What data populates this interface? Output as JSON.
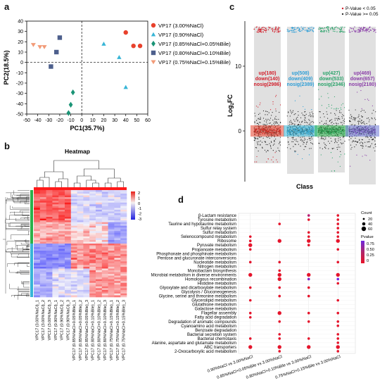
{
  "panel_labels": {
    "a": "a",
    "b": "b",
    "c": "c",
    "d": "d"
  },
  "chart_data": [
    {
      "id": "a",
      "type": "scatter",
      "xlabel": "PC1(35.7%)",
      "ylabel": "PC2(18.5%)",
      "xlim": [
        -50,
        60
      ],
      "ylim": [
        -50,
        40
      ],
      "xticks": [
        "-50",
        "-40",
        "-30",
        "-20",
        "-10",
        "0",
        "10",
        "20",
        "30",
        "40",
        "50",
        "60"
      ],
      "yticks": [
        "40",
        "30",
        "20",
        "10",
        "0",
        "-10",
        "-20",
        "-30",
        "-40",
        "-50"
      ],
      "series": [
        {
          "name": "VP17 (3.00%NaCl)",
          "color": "#e8412c",
          "marker": "circle",
          "points": [
            [
              40,
              29
            ],
            [
              47,
              16
            ],
            [
              53,
              16
            ]
          ]
        },
        {
          "name": "VP17 (0.90%NaCl)",
          "color": "#37b5d6",
          "marker": "triangle",
          "points": [
            [
              20,
              18
            ],
            [
              34,
              5
            ],
            [
              40,
              -24
            ]
          ]
        },
        {
          "name": "VP17 (0.85%NaCl+0.05%Bile)",
          "color": "#1a9476",
          "marker": "diamond",
          "points": [
            [
              -8,
              -29
            ],
            [
              -10,
              -41
            ],
            [
              -12,
              -49
            ]
          ]
        },
        {
          "name": "VP17 (0.80%NaCl+0.10%Bile)",
          "color": "#4d5f8c",
          "marker": "square",
          "points": [
            [
              -20,
              24
            ],
            [
              -23,
              10
            ],
            [
              -28,
              -4
            ]
          ]
        },
        {
          "name": "VP17 (0.75%NaCl+0.15%Bile)",
          "color": "#f29b78",
          "marker": "triangle-down",
          "points": [
            [
              -44,
              17
            ],
            [
              -38,
              15
            ],
            [
              -34,
              15
            ]
          ]
        }
      ]
    },
    {
      "id": "b",
      "type": "heatmap",
      "title": "Heatmap",
      "color_scale": {
        "ticks": [
          "2",
          "1",
          "0",
          "-1",
          "-2",
          "-3"
        ]
      },
      "columns": [
        "VPC17 (3.00%NaCl)_1",
        "VPC17 (3.00%NaCl)_2",
        "VPC17 (3.00%NaCl)_3",
        "VPC17 (0.90%NaCl)_1",
        "VPC17 (0.90%NaCl)_2",
        "VPC17 (0.90%NaCl)_3",
        "VPC17 (0.85%NaCl+0.05%Bile)_1",
        "VPC17 (0.85%NaCl+0.05%Bile)_2",
        "VPC17 (0.85%NaCl+0.05%Bile)_3",
        "VPC17 (0.80%NaCl+0.10%Bile)_1",
        "VPC17 (0.80%NaCl+0.10%Bile)_2",
        "VPC17 (0.80%NaCl+0.10%Bile)_3",
        "VPC17 (0.75%NaCl+0.15%Bile)_1",
        "VPC17 (0.75%NaCl+0.15%Bile)_2",
        "VPC17 (0.75%NaCl+0.15%Bile)_3"
      ]
    },
    {
      "id": "c",
      "type": "scatter",
      "xlabel": "Class",
      "ylabel": "Log2FC",
      "ylabel_main": "Log",
      "ylabel_sub": "2",
      "ylabel_tail": "FC",
      "yticks": [
        "10",
        "0"
      ],
      "legend": [
        "P-Value < 0.05",
        "P-Value >= 0.05"
      ],
      "groups": [
        {
          "up": "up(180)",
          "down": "down(140)",
          "nosig": "nosig(2986)",
          "color": "#d21f2b",
          "band": "#e8412c"
        },
        {
          "up": "up(508)",
          "down": "down(409)",
          "nosig": "nosig(2389)",
          "color": "#2e9ed6",
          "band": "#37b5d6"
        },
        {
          "up": "up(427)",
          "down": "down(533)",
          "nosig": "nosig(2346)",
          "color": "#2aa36a",
          "band": "#2bb14a"
        },
        {
          "up": "up(469)",
          "down": "down(657)",
          "nosig": "nosig(2180)",
          "color": "#8a3ea8",
          "band": "#6c79d6"
        }
      ]
    },
    {
      "id": "d",
      "type": "scatter",
      "x_categories": [
        "0.90%NaCl vs 3.00%NaCl",
        "0.85%NaCl+0.05%Bile vs 3.00%NaCl",
        "0.80%NaCl+0.10%Bile vs 3.00%NaCl",
        "0.75%NaCl+0.15%Bile vs 3.00%NaCl"
      ],
      "y_categories": [
        "β-Lactam resistance",
        "Tyrosine metabolism",
        "Taurine and hypotaurine metabolism",
        "Sulfur relay system",
        "Sulfur metabolism",
        "Selenocompound metabolism",
        "Ribosome",
        "Pyruvate metabolism",
        "Propanoate metabolism",
        "Phosphonate and phosphinate metabolism",
        "Pentose and glucuronate interconversions",
        "Nucleotide metabolism",
        "Nitrogen metabolism",
        "Monobactam biosynthesis",
        "Microbial metabolism in diverse environments",
        "Homologous recombination",
        "Histidine metabolism",
        "Glyoxylate and dicarboxylate metabolism",
        "Glycolysis / Gluconeogenesis",
        "Glycine, serine and threonine metabolism",
        "Glycerolipid metabolism",
        "Glutathione metabolism",
        "Galactose metabolism",
        "Flagellar assembly",
        "Fatty acid degradation",
        "Degradation of aromatic compounds",
        "Cyanoamino acid metabolism",
        "Benzoate degradation",
        "Bacterial secretion system",
        "Bacterial chemotaxis",
        "Alanine, aspartate and glutamate metabolism",
        "ABC transporters",
        "2-Oxocarboxylic acid metabolism"
      ],
      "size_legend": {
        "title": "Count",
        "values": [
          "20",
          "40",
          "60"
        ]
      },
      "color_legend": {
        "title": "Pvalue",
        "ticks": [
          "0.75",
          "0.50",
          "0.25",
          "0"
        ]
      },
      "points": [
        [
          0,
          5,
          2,
          0.01
        ],
        [
          0,
          6,
          2,
          0.01
        ],
        [
          0,
          7,
          3,
          0.01
        ],
        [
          0,
          8,
          2,
          0.01
        ],
        [
          0,
          11,
          2,
          0.02
        ],
        [
          0,
          14,
          3,
          0.01
        ],
        [
          0,
          17,
          2,
          0.02
        ],
        [
          0,
          20,
          2,
          0.01
        ],
        [
          0,
          23,
          2,
          0.01
        ],
        [
          0,
          24,
          2,
          0.02
        ],
        [
          0,
          29,
          2,
          0.01
        ],
        [
          0,
          31,
          3,
          0.01
        ],
        [
          1,
          2,
          2,
          0.01
        ],
        [
          1,
          6,
          3,
          0.01
        ],
        [
          1,
          11,
          2,
          0.02
        ],
        [
          1,
          13,
          2,
          0.01
        ],
        [
          1,
          14,
          3,
          0.01
        ],
        [
          1,
          15,
          3,
          0.01
        ],
        [
          1,
          17,
          2,
          0.02
        ],
        [
          1,
          19,
          2,
          0.01
        ],
        [
          1,
          23,
          3,
          0.01
        ],
        [
          1,
          25,
          2,
          0.01
        ],
        [
          1,
          28,
          2,
          0.02
        ],
        [
          1,
          29,
          2,
          0.01
        ],
        [
          1,
          31,
          3,
          0.01
        ],
        [
          1,
          32,
          2,
          0.01
        ],
        [
          2,
          0,
          2,
          0.3
        ],
        [
          2,
          1,
          2,
          0.01
        ],
        [
          2,
          4,
          2,
          0.01
        ],
        [
          2,
          5,
          2,
          0.01
        ],
        [
          2,
          6,
          3,
          0.01
        ],
        [
          2,
          7,
          2,
          0.01
        ],
        [
          2,
          14,
          3,
          0.01
        ],
        [
          2,
          15,
          2,
          0.65
        ],
        [
          2,
          17,
          2,
          0.01
        ],
        [
          2,
          19,
          2,
          0.01
        ],
        [
          2,
          23,
          2,
          0.01
        ],
        [
          2,
          25,
          2,
          0.01
        ],
        [
          2,
          29,
          2,
          0.01
        ],
        [
          2,
          31,
          3,
          0.01
        ],
        [
          3,
          0,
          2,
          0.01
        ],
        [
          3,
          1,
          2,
          0.01
        ],
        [
          3,
          2,
          2,
          0.01
        ],
        [
          3,
          3,
          2,
          0.01
        ],
        [
          3,
          4,
          2,
          0.01
        ],
        [
          3,
          5,
          2,
          0.01
        ],
        [
          3,
          6,
          3,
          0.01
        ],
        [
          3,
          8,
          2,
          0.01
        ],
        [
          3,
          11,
          2,
          0.01
        ],
        [
          3,
          14,
          3,
          0.01
        ],
        [
          3,
          15,
          2,
          0.75
        ],
        [
          3,
          16,
          2,
          0.01
        ],
        [
          3,
          20,
          2,
          0.01
        ],
        [
          3,
          23,
          2,
          0.01
        ],
        [
          3,
          25,
          2,
          0.01
        ],
        [
          3,
          26,
          2,
          0.01
        ],
        [
          3,
          28,
          2,
          0.01
        ],
        [
          3,
          29,
          2,
          0.01
        ],
        [
          3,
          30,
          2,
          0.01
        ],
        [
          3,
          31,
          3,
          0.01
        ],
        [
          3,
          32,
          2,
          0.01
        ]
      ]
    }
  ]
}
